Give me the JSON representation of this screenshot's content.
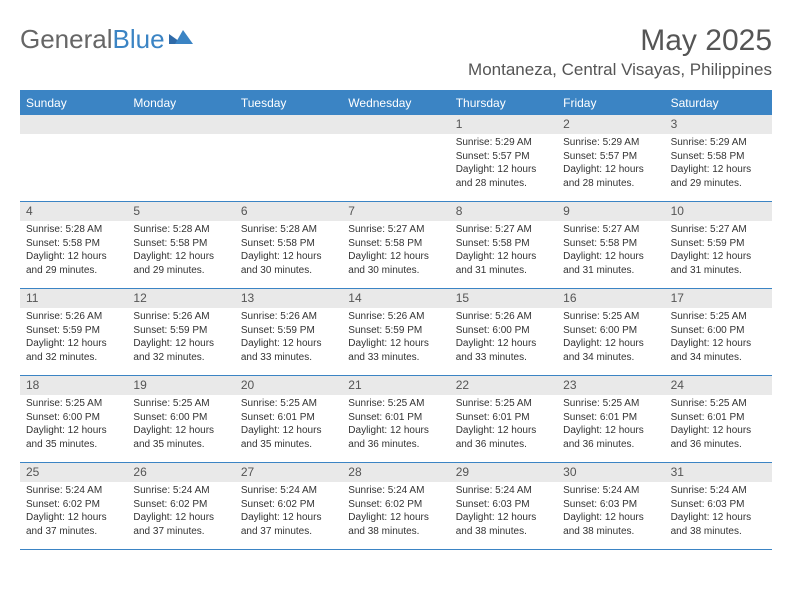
{
  "brand": {
    "part1": "General",
    "part2": "Blue"
  },
  "title": "May 2025",
  "location": "Montaneza, Central Visayas, Philippines",
  "colors": {
    "accent": "#3b84c4",
    "daynum_bg": "#e9e9e9",
    "text": "#555555",
    "body_text": "#333333"
  },
  "weekdays": [
    "Sunday",
    "Monday",
    "Tuesday",
    "Wednesday",
    "Thursday",
    "Friday",
    "Saturday"
  ],
  "labels": {
    "sunrise": "Sunrise:",
    "sunset": "Sunset:",
    "daylight": "Daylight:"
  },
  "weeks": [
    [
      null,
      null,
      null,
      null,
      {
        "n": "1",
        "sunrise": "5:29 AM",
        "sunset": "5:57 PM",
        "daylight": "12 hours and 28 minutes."
      },
      {
        "n": "2",
        "sunrise": "5:29 AM",
        "sunset": "5:57 PM",
        "daylight": "12 hours and 28 minutes."
      },
      {
        "n": "3",
        "sunrise": "5:29 AM",
        "sunset": "5:58 PM",
        "daylight": "12 hours and 29 minutes."
      }
    ],
    [
      {
        "n": "4",
        "sunrise": "5:28 AM",
        "sunset": "5:58 PM",
        "daylight": "12 hours and 29 minutes."
      },
      {
        "n": "5",
        "sunrise": "5:28 AM",
        "sunset": "5:58 PM",
        "daylight": "12 hours and 29 minutes."
      },
      {
        "n": "6",
        "sunrise": "5:28 AM",
        "sunset": "5:58 PM",
        "daylight": "12 hours and 30 minutes."
      },
      {
        "n": "7",
        "sunrise": "5:27 AM",
        "sunset": "5:58 PM",
        "daylight": "12 hours and 30 minutes."
      },
      {
        "n": "8",
        "sunrise": "5:27 AM",
        "sunset": "5:58 PM",
        "daylight": "12 hours and 31 minutes."
      },
      {
        "n": "9",
        "sunrise": "5:27 AM",
        "sunset": "5:58 PM",
        "daylight": "12 hours and 31 minutes."
      },
      {
        "n": "10",
        "sunrise": "5:27 AM",
        "sunset": "5:59 PM",
        "daylight": "12 hours and 31 minutes."
      }
    ],
    [
      {
        "n": "11",
        "sunrise": "5:26 AM",
        "sunset": "5:59 PM",
        "daylight": "12 hours and 32 minutes."
      },
      {
        "n": "12",
        "sunrise": "5:26 AM",
        "sunset": "5:59 PM",
        "daylight": "12 hours and 32 minutes."
      },
      {
        "n": "13",
        "sunrise": "5:26 AM",
        "sunset": "5:59 PM",
        "daylight": "12 hours and 33 minutes."
      },
      {
        "n": "14",
        "sunrise": "5:26 AM",
        "sunset": "5:59 PM",
        "daylight": "12 hours and 33 minutes."
      },
      {
        "n": "15",
        "sunrise": "5:26 AM",
        "sunset": "6:00 PM",
        "daylight": "12 hours and 33 minutes."
      },
      {
        "n": "16",
        "sunrise": "5:25 AM",
        "sunset": "6:00 PM",
        "daylight": "12 hours and 34 minutes."
      },
      {
        "n": "17",
        "sunrise": "5:25 AM",
        "sunset": "6:00 PM",
        "daylight": "12 hours and 34 minutes."
      }
    ],
    [
      {
        "n": "18",
        "sunrise": "5:25 AM",
        "sunset": "6:00 PM",
        "daylight": "12 hours and 35 minutes."
      },
      {
        "n": "19",
        "sunrise": "5:25 AM",
        "sunset": "6:00 PM",
        "daylight": "12 hours and 35 minutes."
      },
      {
        "n": "20",
        "sunrise": "5:25 AM",
        "sunset": "6:01 PM",
        "daylight": "12 hours and 35 minutes."
      },
      {
        "n": "21",
        "sunrise": "5:25 AM",
        "sunset": "6:01 PM",
        "daylight": "12 hours and 36 minutes."
      },
      {
        "n": "22",
        "sunrise": "5:25 AM",
        "sunset": "6:01 PM",
        "daylight": "12 hours and 36 minutes."
      },
      {
        "n": "23",
        "sunrise": "5:25 AM",
        "sunset": "6:01 PM",
        "daylight": "12 hours and 36 minutes."
      },
      {
        "n": "24",
        "sunrise": "5:25 AM",
        "sunset": "6:01 PM",
        "daylight": "12 hours and 36 minutes."
      }
    ],
    [
      {
        "n": "25",
        "sunrise": "5:24 AM",
        "sunset": "6:02 PM",
        "daylight": "12 hours and 37 minutes."
      },
      {
        "n": "26",
        "sunrise": "5:24 AM",
        "sunset": "6:02 PM",
        "daylight": "12 hours and 37 minutes."
      },
      {
        "n": "27",
        "sunrise": "5:24 AM",
        "sunset": "6:02 PM",
        "daylight": "12 hours and 37 minutes."
      },
      {
        "n": "28",
        "sunrise": "5:24 AM",
        "sunset": "6:02 PM",
        "daylight": "12 hours and 38 minutes."
      },
      {
        "n": "29",
        "sunrise": "5:24 AM",
        "sunset": "6:03 PM",
        "daylight": "12 hours and 38 minutes."
      },
      {
        "n": "30",
        "sunrise": "5:24 AM",
        "sunset": "6:03 PM",
        "daylight": "12 hours and 38 minutes."
      },
      {
        "n": "31",
        "sunrise": "5:24 AM",
        "sunset": "6:03 PM",
        "daylight": "12 hours and 38 minutes."
      }
    ]
  ]
}
